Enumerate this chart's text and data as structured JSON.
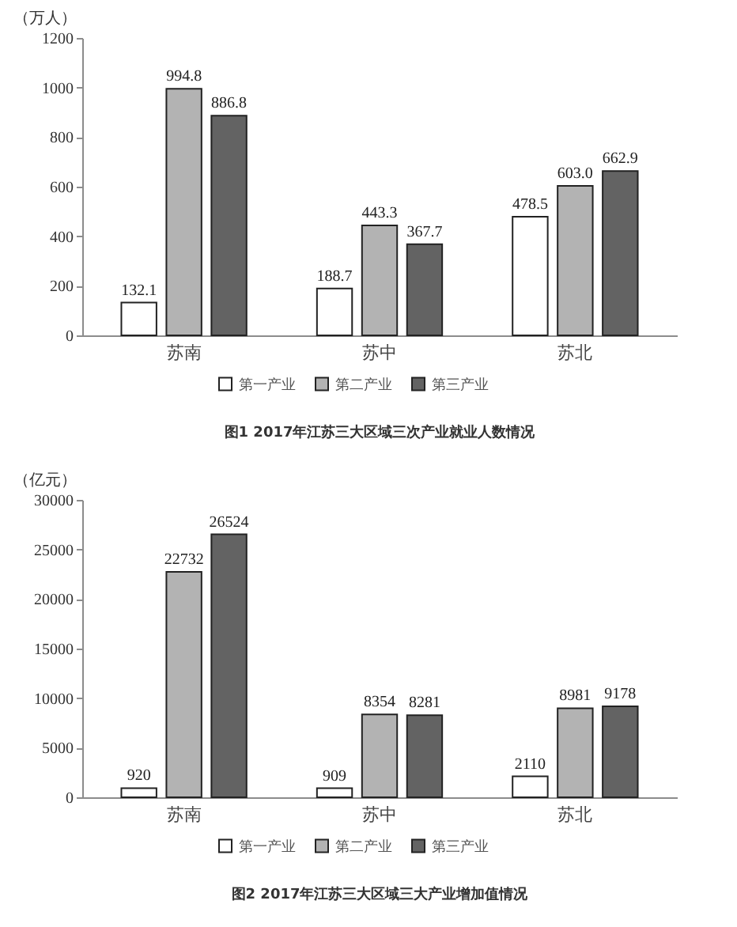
{
  "chart_data": [
    {
      "type": "bar",
      "title": "图1 2017年江苏三大区域三次产业就业人数情况",
      "ylabel": "（万人）",
      "categories": [
        "苏南",
        "苏中",
        "苏北"
      ],
      "series": [
        {
          "name": "第一产业",
          "color": "#ffffff",
          "values": [
            132.1,
            188.7,
            478.5
          ],
          "value_labels": [
            "132.1",
            "188.7",
            "478.5"
          ]
        },
        {
          "name": "第二产业",
          "color": "#b3b3b3",
          "values": [
            994.8,
            443.3,
            603.0
          ],
          "value_labels": [
            "994.8",
            "443.3",
            "603.0"
          ]
        },
        {
          "name": "第三产业",
          "color": "#636363",
          "values": [
            886.8,
            367.7,
            662.9
          ],
          "value_labels": [
            "886.8",
            "367.7",
            "662.9"
          ]
        }
      ],
      "ylim": [
        0,
        1200
      ],
      "yticks": [
        0,
        200,
        400,
        600,
        800,
        1000,
        1200
      ],
      "legend": "bottom"
    },
    {
      "type": "bar",
      "title": "图2 2017年江苏三大区域三大产业增加值情况",
      "ylabel": "（亿元）",
      "categories": [
        "苏南",
        "苏中",
        "苏北"
      ],
      "series": [
        {
          "name": "第一产业",
          "color": "#ffffff",
          "values": [
            920,
            909,
            2110
          ]
        },
        {
          "name": "第二产业",
          "color": "#b3b3b3",
          "values": [
            22732,
            8354,
            8981
          ]
        },
        {
          "name": "第三产业",
          "color": "#636363",
          "values": [
            26524,
            8281,
            9178
          ]
        }
      ],
      "ylim": [
        0,
        30000
      ],
      "yticks": [
        0,
        5000,
        10000,
        15000,
        20000,
        25000,
        30000
      ],
      "data_labels": true,
      "legend": "bottom"
    }
  ]
}
